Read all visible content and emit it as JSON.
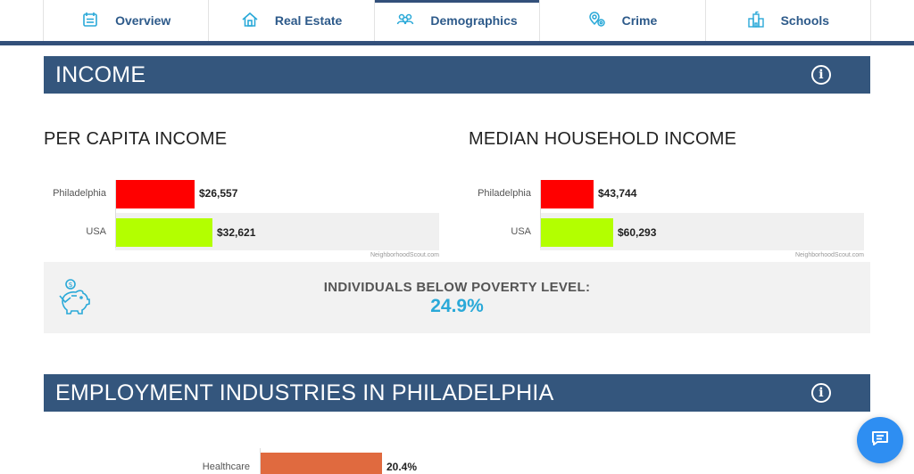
{
  "tabs": [
    {
      "label": "Overview",
      "icon": "calendar-list-icon"
    },
    {
      "label": "Real Estate",
      "icon": "house-icon"
    },
    {
      "label": "Demographics",
      "icon": "people-icon"
    },
    {
      "label": "Crime",
      "icon": "location-pin-icon"
    },
    {
      "label": "Schools",
      "icon": "school-building-icon"
    }
  ],
  "active_tab": "Demographics",
  "income": {
    "header": "INCOME",
    "per_capita": {
      "title": "PER CAPITA INCOME",
      "rows": [
        {
          "label": "Philadelphia",
          "value_text": "$26,557",
          "value": 26557,
          "color": "#ff0000"
        },
        {
          "label": "USA",
          "value_text": "$32,621",
          "value": 32621,
          "color": "#b3ff00"
        }
      ],
      "credit": "NeighborhoodScout.com"
    },
    "median_household": {
      "title": "MEDIAN HOUSEHOLD INCOME",
      "rows": [
        {
          "label": "Philadelphia",
          "value_text": "$43,744",
          "value": 43744,
          "color": "#ff0000"
        },
        {
          "label": "USA",
          "value_text": "$60,293",
          "value": 60293,
          "color": "#b3ff00"
        }
      ],
      "credit": "NeighborhoodScout.com"
    },
    "poverty": {
      "label": "INDIVIDUALS BELOW POVERTY LEVEL:",
      "value": "24.9%"
    }
  },
  "employment": {
    "header": "EMPLOYMENT INDUSTRIES IN PHILADELPHIA",
    "rows": [
      {
        "label": "Healthcare",
        "value_text": "20.4%",
        "value": 20.4,
        "color": "#e06a3f"
      }
    ]
  },
  "colors": {
    "header_bg": "#34567d",
    "accent_blue": "#2aa9d8",
    "tab_text": "#2d5a8a",
    "chat_button": "#2e8ef2"
  },
  "chart_data": [
    {
      "type": "bar",
      "title": "PER CAPITA INCOME",
      "categories": [
        "Philadelphia",
        "USA"
      ],
      "values": [
        26557,
        32621
      ],
      "xlabel": "",
      "ylabel": ""
    },
    {
      "type": "bar",
      "title": "MEDIAN HOUSEHOLD INCOME",
      "categories": [
        "Philadelphia",
        "USA"
      ],
      "values": [
        43744,
        60293
      ],
      "xlabel": "",
      "ylabel": ""
    },
    {
      "type": "bar",
      "title": "EMPLOYMENT INDUSTRIES IN PHILADELPHIA",
      "categories": [
        "Healthcare"
      ],
      "values": [
        20.4
      ],
      "xlabel": "",
      "ylabel": ""
    }
  ]
}
